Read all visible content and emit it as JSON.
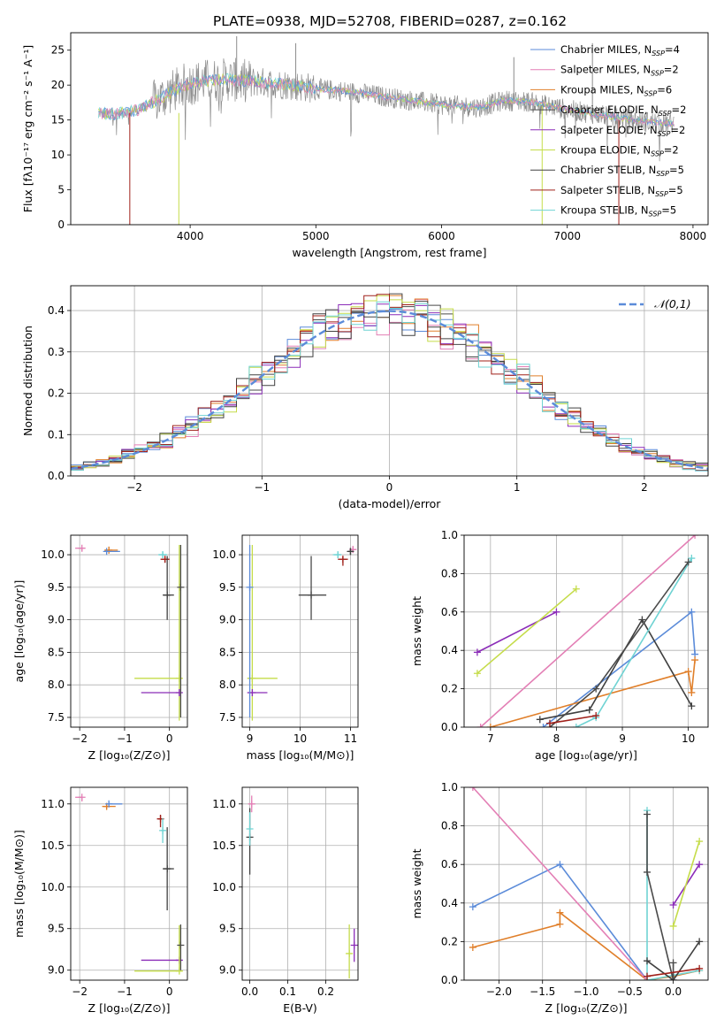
{
  "title": "PLATE=0938, MJD=52708, FIBERID=0287, z=0.162",
  "colors": {
    "chabrier_miles": "#5b8bd9",
    "salpeter_miles": "#e37fb5",
    "kroupa_miles": "#e07f2a",
    "chabrier_elodie": "#4a4a4a",
    "salpeter_elodie": "#8b2cb8",
    "kroupa_elodie": "#c5dc4a",
    "chabrier_stelib": "#404040",
    "salpeter_stelib": "#a0201a",
    "kroupa_stelib": "#6fd3d3",
    "data": "#8c8c8c",
    "grid": "#b0b0b0"
  },
  "chart_data": [
    {
      "type": "line",
      "panel": "spectrum",
      "xlabel": "wavelength [Angstrom, rest frame]",
      "ylabel": "Flux [fλ10⁻¹⁷ erg cm⁻² s⁻¹ A⁻¹]",
      "xlim": [
        3050,
        8120
      ],
      "ylim": [
        0,
        27.5
      ],
      "xticks": [
        4000,
        5000,
        6000,
        7000,
        8000
      ],
      "yticks": [
        0,
        5,
        10,
        15,
        20,
        25
      ],
      "grid": false,
      "legend_position": "upper-right",
      "legend": [
        {
          "key": "chabrier_miles",
          "base": "Chabrier MILES, N",
          "sub": "SSP",
          "tail": "=4"
        },
        {
          "key": "salpeter_miles",
          "base": "Salpeter MILES, N",
          "sub": "SSP",
          "tail": "=2"
        },
        {
          "key": "kroupa_miles",
          "base": "Kroupa MILES, N",
          "sub": "SSP",
          "tail": "=6"
        },
        {
          "key": "chabrier_elodie",
          "base": "Chabrier ELODIE, N",
          "sub": "SSP",
          "tail": "=2"
        },
        {
          "key": "salpeter_elodie",
          "base": "Salpeter ELODIE, N",
          "sub": "SSP",
          "tail": "=2"
        },
        {
          "key": "kroupa_elodie",
          "base": "Kroupa ELODIE, N",
          "sub": "SSP",
          "tail": "=2"
        },
        {
          "key": "chabrier_stelib",
          "base": "Chabrier STELIB, N",
          "sub": "SSP",
          "tail": "=5"
        },
        {
          "key": "salpeter_stelib",
          "base": "Salpeter STELIB, N",
          "sub": "SSP",
          "tail": "=5"
        },
        {
          "key": "kroupa_stelib",
          "base": "Kroupa STELIB, N",
          "sub": "SSP",
          "tail": "=5"
        }
      ],
      "continuum_anchors": {
        "x": [
          3270,
          3400,
          3600,
          3800,
          3950,
          4100,
          4300,
          4500,
          4800,
          5000,
          5300,
          5600,
          6000,
          6300,
          6500,
          6700,
          7000,
          7300,
          7600,
          7850
        ],
        "y": [
          16.0,
          15.8,
          16.5,
          18.5,
          20.0,
          20.6,
          20.8,
          20.5,
          20.0,
          19.5,
          19.0,
          18.2,
          17.2,
          16.8,
          17.8,
          17.6,
          16.5,
          15.6,
          14.8,
          14.5
        ]
      }
    },
    {
      "type": "step",
      "panel": "residuals",
      "xlabel": "(data-model)/error",
      "ylabel": "Normed distribution",
      "xlim": [
        -2.5,
        2.5
      ],
      "ylim": [
        0,
        0.46
      ],
      "xticks": [
        -2,
        -1,
        0,
        1,
        2
      ],
      "yticks": [
        0.0,
        0.1,
        0.2,
        0.3,
        0.4
      ],
      "grid": true,
      "legend_position": "upper-right",
      "reference_curve": {
        "name": "𝒩(0,1)",
        "mean": 0,
        "sigma": 1,
        "color": "#5b8bd9"
      }
    },
    {
      "type": "errorbar",
      "panel": "age_vs_Z",
      "xlabel": "Z [log₁₀(Z/Z⊙)]",
      "ylabel": "age  [log₁₀(age/yr)]",
      "xlim": [
        -2.2,
        0.4
      ],
      "ylim": [
        7.35,
        10.3
      ],
      "xticks": [
        -2,
        -1,
        0
      ],
      "yticks": [
        7.5,
        8.0,
        8.5,
        9.0,
        9.5,
        10.0
      ],
      "grid": true,
      "points": [
        {
          "key": "salpeter_miles",
          "x": -1.95,
          "y": 10.1,
          "ex": [
            0.15,
            0.0
          ],
          "ey": [
            0.05,
            0.0
          ]
        },
        {
          "key": "kroupa_miles",
          "x": -1.35,
          "y": 10.07,
          "ex": [
            0.1,
            0.2
          ],
          "ey": [
            0.05,
            0.05
          ]
        },
        {
          "key": "chabrier_miles",
          "x": -1.4,
          "y": 10.05,
          "ex": [
            0.05,
            0.3
          ],
          "ey": [
            0.02,
            0.02
          ]
        },
        {
          "key": "kroupa_stelib",
          "x": -0.15,
          "y": 10.0,
          "ex": [
            0.1,
            0.1
          ],
          "ey": [
            0.05,
            0.05
          ]
        },
        {
          "key": "salpeter_stelib",
          "x": -0.1,
          "y": 9.93,
          "ex": [
            0.1,
            0.1
          ],
          "ey": [
            0.05,
            0.05
          ]
        },
        {
          "key": "chabrier_stelib",
          "x": -0.05,
          "y": 9.38,
          "ex": [
            0.1,
            0.15
          ],
          "ey": [
            0.38,
            0.6
          ]
        },
        {
          "key": "kroupa_elodie",
          "x": 0.22,
          "y": 8.1,
          "ex": [
            1.0,
            0.05
          ],
          "ey": [
            0.65,
            2.05
          ]
        },
        {
          "key": "salpeter_elodie",
          "x": 0.22,
          "y": 7.88,
          "ex": [
            0.85,
            0.0
          ],
          "ey": [
            0.0,
            0.0
          ]
        },
        {
          "key": "chabrier_elodie",
          "x": 0.25,
          "y": 9.5,
          "ex": [
            0.0,
            0.0
          ],
          "ey": [
            2.0,
            0.65
          ]
        }
      ]
    },
    {
      "type": "errorbar",
      "panel": "age_vs_mass",
      "xlabel": "mass [log₁₀(M/M⊙)]",
      "ylabel": "",
      "xlim": [
        8.85,
        11.15
      ],
      "ylim": [
        7.35,
        10.3
      ],
      "xticks": [
        9,
        10,
        11
      ],
      "yticks": [
        7.5,
        8.0,
        8.5,
        9.0,
        9.5,
        10.0
      ],
      "grid": true,
      "points": [
        {
          "key": "salpeter_miles",
          "x": 11.05,
          "y": 10.08,
          "ex": [
            0.05,
            0.05
          ],
          "ey": [
            0.05,
            0.05
          ]
        },
        {
          "key": "chabrier_stelib",
          "x": 11.0,
          "y": 10.05,
          "ex": [
            0.05,
            0.05
          ],
          "ey": [
            0.05,
            0.05
          ]
        },
        {
          "key": "kroupa_stelib",
          "x": 10.75,
          "y": 10.0,
          "ex": [
            0.1,
            0.05
          ],
          "ey": [
            0.05,
            0.05
          ]
        },
        {
          "key": "salpeter_stelib",
          "x": 10.85,
          "y": 9.93,
          "ex": [
            0.1,
            0.1
          ],
          "ey": [
            0.1,
            0.05
          ]
        },
        {
          "key": "chabrier_elodie",
          "x": 10.22,
          "y": 9.38,
          "ex": [
            0.25,
            0.3
          ],
          "ey": [
            0.38,
            0.6
          ]
        },
        {
          "key": "kroupa_elodie",
          "x": 9.05,
          "y": 8.1,
          "ex": [
            0.1,
            0.5
          ],
          "ey": [
            0.65,
            2.05
          ]
        },
        {
          "key": "salpeter_elodie",
          "x": 9.05,
          "y": 7.88,
          "ex": [
            0.1,
            0.3
          ],
          "ey": [
            0.0,
            0.0
          ]
        },
        {
          "key": "chabrier_miles",
          "x": 9.0,
          "y": 9.5,
          "ex": [
            0.0,
            0.0
          ],
          "ey": [
            2.0,
            0.65
          ]
        }
      ]
    },
    {
      "type": "line",
      "panel": "massweight_vs_age",
      "xlabel": "age  [log₁₀(age/yr)]",
      "ylabel": "mass weight",
      "xlim": [
        6.6,
        10.3
      ],
      "ylim": [
        0.0,
        1.0
      ],
      "xticks": [
        7,
        8,
        9,
        10
      ],
      "yticks": [
        0.0,
        0.2,
        0.4,
        0.6,
        0.8,
        1.0
      ],
      "grid": true,
      "series": [
        {
          "key": "salpeter_elodie",
          "x": [
            6.8,
            8.0
          ],
          "y": [
            0.39,
            0.6
          ]
        },
        {
          "key": "kroupa_elodie",
          "x": [
            6.8,
            8.3
          ],
          "y": [
            0.28,
            0.72
          ]
        },
        {
          "key": "salpeter_miles",
          "x": [
            6.85,
            10.1
          ],
          "y": [
            0.0,
            1.0
          ]
        },
        {
          "key": "chabrier_miles",
          "x": [
            7.8,
            10.05,
            10.1
          ],
          "y": [
            0.0,
            0.6,
            0.38
          ]
        },
        {
          "key": "kroupa_miles",
          "x": [
            7.0,
            10.0,
            10.05,
            10.1
          ],
          "y": [
            0.0,
            0.29,
            0.18,
            0.35
          ]
        },
        {
          "key": "chabrier_stelib",
          "x": [
            7.75,
            8.5,
            9.3,
            10.05
          ],
          "y": [
            0.04,
            0.09,
            0.56,
            0.11
          ]
        },
        {
          "key": "kroupa_stelib",
          "x": [
            8.3,
            8.6,
            10.05
          ],
          "y": [
            0.0,
            0.05,
            0.88
          ]
        },
        {
          "key": "chabrier_elodie",
          "x": [
            7.9,
            8.6,
            10.0
          ],
          "y": [
            0.0,
            0.2,
            0.86
          ]
        },
        {
          "key": "salpeter_stelib",
          "x": [
            7.9,
            8.6
          ],
          "y": [
            0.02,
            0.06
          ]
        }
      ]
    },
    {
      "type": "errorbar",
      "panel": "mass_vs_Z",
      "xlabel": "Z [log₁₀(Z/Z⊙)]",
      "ylabel": "mass [log₁₀(M/M⊙)]",
      "xlim": [
        -2.2,
        0.4
      ],
      "ylim": [
        8.88,
        11.2
      ],
      "xticks": [
        -2,
        -1,
        0
      ],
      "yticks": [
        9.0,
        9.5,
        10.0,
        10.5,
        11.0
      ],
      "grid": true,
      "points": [
        {
          "key": "salpeter_miles",
          "x": -1.95,
          "y": 11.08,
          "ex": [
            0.15,
            0.0
          ],
          "ey": [
            0.05,
            0.0
          ]
        },
        {
          "key": "kroupa_miles",
          "x": -1.4,
          "y": 10.97,
          "ex": [
            0.1,
            0.2
          ],
          "ey": [
            0.03,
            0.03
          ]
        },
        {
          "key": "chabrier_miles",
          "x": -1.35,
          "y": 11.0,
          "ex": [
            0.05,
            0.3
          ],
          "ey": [
            0.02,
            0.02
          ]
        },
        {
          "key": "salpeter_stelib",
          "x": -0.2,
          "y": 10.82,
          "ex": [
            0.05,
            0.05
          ],
          "ey": [
            0.1,
            0.05
          ]
        },
        {
          "key": "kroupa_stelib",
          "x": -0.15,
          "y": 10.68,
          "ex": [
            0.05,
            0.05
          ],
          "ey": [
            0.15,
            0.15
          ]
        },
        {
          "key": "chabrier_stelib",
          "x": -0.05,
          "y": 10.22,
          "ex": [
            0.1,
            0.15
          ],
          "ey": [
            0.5,
            0.5
          ]
        },
        {
          "key": "salpeter_elodie",
          "x": 0.22,
          "y": 9.12,
          "ex": [
            0.85,
            0.0
          ],
          "ey": [
            0.0,
            0.0
          ]
        },
        {
          "key": "kroupa_elodie",
          "x": 0.22,
          "y": 8.99,
          "ex": [
            1.0,
            0.05
          ],
          "ey": [
            0.0,
            0.55
          ]
        },
        {
          "key": "chabrier_elodie",
          "x": 0.25,
          "y": 9.3,
          "ex": [
            0.0,
            0.0
          ],
          "ey": [
            0.3,
            0.25
          ]
        }
      ]
    },
    {
      "type": "errorbar",
      "panel": "mass_vs_ebv",
      "xlabel": "E(B-V)",
      "ylabel": "",
      "xlim": [
        -0.02,
        0.285
      ],
      "ylim": [
        8.88,
        11.2
      ],
      "xticks": [
        0.0,
        0.1,
        0.2
      ],
      "yticks": [
        9.0,
        9.5,
        10.0,
        10.5,
        11.0
      ],
      "grid": true,
      "points": [
        {
          "key": "salpeter_miles",
          "x": 0.005,
          "y": 11.0,
          "ex": [
            0.0,
            0.0
          ],
          "ey": [
            0.1,
            0.1
          ]
        },
        {
          "key": "chabrier_stelib",
          "x": 0.0,
          "y": 10.6,
          "ex": [
            0.0,
            0.0
          ],
          "ey": [
            0.45,
            0.35
          ]
        },
        {
          "key": "kroupa_stelib",
          "x": 0.0,
          "y": 10.7,
          "ex": [
            0.0,
            0.0
          ],
          "ey": [
            0.2,
            0.2
          ]
        },
        {
          "key": "kroupa_elodie",
          "x": 0.262,
          "y": 9.2,
          "ex": [
            0.0,
            0.0
          ],
          "ey": [
            0.3,
            0.35
          ]
        },
        {
          "key": "salpeter_elodie",
          "x": 0.275,
          "y": 9.3,
          "ex": [
            0.0,
            0.0
          ],
          "ey": [
            0.2,
            0.2
          ]
        }
      ]
    },
    {
      "type": "line",
      "panel": "massweight_vs_Z",
      "xlabel": "Z [log₁₀(Z/Z⊙)]",
      "ylabel": "mass weight",
      "xlim": [
        -2.4,
        0.4
      ],
      "ylim": [
        0.0,
        1.0
      ],
      "xticks": [
        -2.0,
        -1.5,
        -1.0,
        -0.5,
        0.0
      ],
      "yticks": [
        0.0,
        0.2,
        0.4,
        0.6,
        0.8,
        1.0
      ],
      "grid": true,
      "series": [
        {
          "key": "chabrier_miles",
          "x": [
            -2.3,
            -1.3,
            -0.3
          ],
          "y": [
            0.38,
            0.6,
            0.0
          ]
        },
        {
          "key": "kroupa_miles",
          "x": [
            -2.3,
            -1.3,
            -1.3,
            -0.3,
            0.0,
            0.3
          ],
          "y": [
            0.17,
            0.29,
            0.35,
            0.0,
            0.02,
            0.05
          ]
        },
        {
          "key": "salpeter_miles",
          "x": [
            -2.3,
            -0.3
          ],
          "y": [
            1.0,
            0.0
          ]
        },
        {
          "key": "kroupa_stelib",
          "x": [
            -0.3,
            -0.3,
            0.3
          ],
          "y": [
            0.88,
            0.0,
            0.05
          ]
        },
        {
          "key": "chabrier_stelib",
          "x": [
            -0.3,
            0.0,
            0.3
          ],
          "y": [
            0.1,
            0.0,
            0.2
          ]
        },
        {
          "key": "chabrier_elodie",
          "x": [
            -0.3,
            -0.3,
            0.0,
            0.0
          ],
          "y": [
            0.86,
            0.56,
            0.0,
            0.09
          ]
        },
        {
          "key": "salpeter_elodie",
          "x": [
            0.0,
            0.3
          ],
          "y": [
            0.39,
            0.6
          ]
        },
        {
          "key": "kroupa_elodie",
          "x": [
            0.0,
            0.3
          ],
          "y": [
            0.28,
            0.72
          ]
        },
        {
          "key": "salpeter_stelib",
          "x": [
            -0.3,
            0.3
          ],
          "y": [
            0.02,
            0.06
          ]
        }
      ]
    }
  ]
}
